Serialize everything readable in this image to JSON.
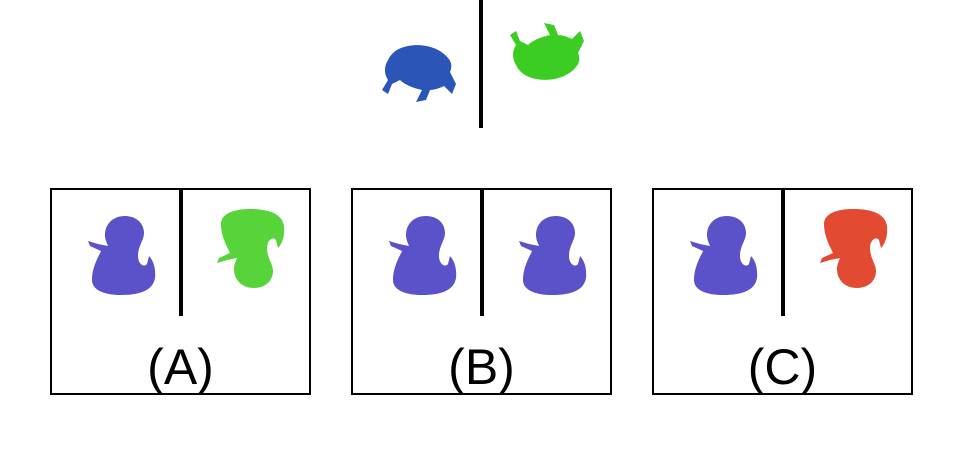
{
  "colors": {
    "blue_frog": "#2b56b8",
    "green_frog": "#3ccd22",
    "purple_duck": "#5b51c8",
    "green_duck": "#56d43a",
    "red_duck": "#e24a32",
    "frame": "#000000"
  },
  "question": {
    "left": {
      "icon": "frog-icon",
      "color": "blue",
      "orientation": "upright"
    },
    "right": {
      "icon": "frog-icon",
      "color": "green",
      "orientation": "flipped-upside-down"
    }
  },
  "options": [
    {
      "label": "(A)",
      "left": {
        "icon": "duck-icon",
        "color": "purple",
        "orientation": "upright"
      },
      "right": {
        "icon": "duck-icon",
        "color": "green",
        "orientation": "flipped-upside-down"
      }
    },
    {
      "label": "(B)",
      "left": {
        "icon": "duck-icon",
        "color": "purple",
        "orientation": "upright"
      },
      "right": {
        "icon": "duck-icon",
        "color": "purple",
        "orientation": "upright"
      }
    },
    {
      "label": "(C)",
      "left": {
        "icon": "duck-icon",
        "color": "purple",
        "orientation": "upright"
      },
      "right": {
        "icon": "duck-icon",
        "color": "red",
        "orientation": "flipped-upside-down"
      }
    }
  ]
}
